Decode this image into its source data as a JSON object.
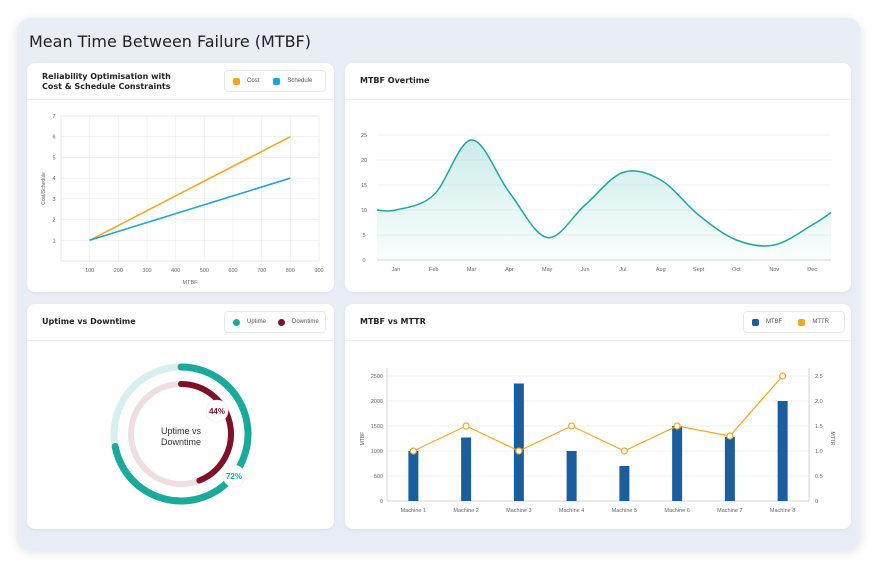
{
  "dashboard_title": "Mean Time Between Failure (MTBF)",
  "colors": {
    "orange": "#f5a623",
    "blue": "#1aa3e0",
    "teal": "#1aaa9c",
    "maroon": "#7d1128",
    "navy": "#1b5e9e"
  },
  "panel1": {
    "title_line1": "Reliability Optimisation with",
    "title_line2": "Cost & Schedule Constraints",
    "legend": [
      "Cost",
      "Schedule"
    ]
  },
  "panel2": {
    "title": "MTBF Overtime"
  },
  "panel3": {
    "title": "Uptime vs Downtime",
    "legend": [
      "Uptime",
      "Downtime"
    ],
    "center_line1": "Uptime vs",
    "center_line2": "Downtime",
    "uptime_label": "72%",
    "downtime_label": "44%"
  },
  "panel4": {
    "title": "MTBF vs MTTR",
    "legend": [
      "MTBF",
      "MTTR"
    ]
  },
  "chart_data": [
    {
      "type": "line",
      "title": "Reliability Optimisation with Cost & Schedule Constraints",
      "xlabel": "MTBF",
      "ylabel": "Cost/Schedule",
      "x_ticks": [
        100,
        200,
        300,
        400,
        500,
        600,
        700,
        800,
        900
      ],
      "y_ticks": [
        1,
        2,
        3,
        4,
        5,
        6,
        7
      ],
      "xlim": [
        0,
        900
      ],
      "ylim": [
        0,
        7
      ],
      "grid": true,
      "legend": "top-right",
      "series": [
        {
          "name": "Cost",
          "x": [
            100,
            800
          ],
          "y": [
            1,
            6
          ]
        },
        {
          "name": "Schedule",
          "x": [
            100,
            800
          ],
          "y": [
            1,
            4
          ]
        }
      ]
    },
    {
      "type": "area",
      "title": "MTBF Overtime",
      "categories": [
        "Jan",
        "Feb",
        "Mar",
        "Apr",
        "May",
        "Jun",
        "Jul",
        "Aug",
        "Sept",
        "Oct",
        "Nov",
        "Dec"
      ],
      "y_ticks": [
        0,
        5,
        10,
        15,
        20,
        25
      ],
      "ylim": [
        0,
        25
      ],
      "grid": true,
      "values": [
        10,
        13,
        24,
        13.5,
        4.5,
        11,
        17.5,
        16,
        9,
        4,
        3,
        7
      ]
    },
    {
      "type": "pie",
      "title": "Uptime vs Downtime",
      "legend": "top-right",
      "series": [
        {
          "name": "Uptime",
          "value": 72
        },
        {
          "name": "Downtime",
          "value": 44
        }
      ]
    },
    {
      "type": "bar",
      "title": "MTBF vs MTTR",
      "categories": [
        "Machine 1",
        "Machine 2",
        "Machine 3",
        "Machine 4",
        "Machine 5",
        "Machine 6",
        "Machine 7",
        "Machine 8"
      ],
      "ylabel": "MTBF",
      "y2label": "MTTR",
      "ylim": [
        0,
        2500
      ],
      "y2lim": [
        0,
        2.5
      ],
      "y_ticks": [
        0,
        500,
        1000,
        1500,
        2000,
        2500
      ],
      "y2_ticks": [
        0,
        0.5,
        1.0,
        1.5,
        2.0,
        2.5
      ],
      "legend": "top-right",
      "series": [
        {
          "name": "MTBF",
          "type": "bar",
          "values": [
            1000,
            1270,
            2350,
            1000,
            700,
            1500,
            1280,
            2000
          ]
        },
        {
          "name": "MTTR",
          "type": "line",
          "axis": "right",
          "values": [
            1.0,
            1.5,
            1.0,
            1.5,
            1.0,
            1.5,
            1.3,
            2.5
          ]
        }
      ]
    }
  ]
}
